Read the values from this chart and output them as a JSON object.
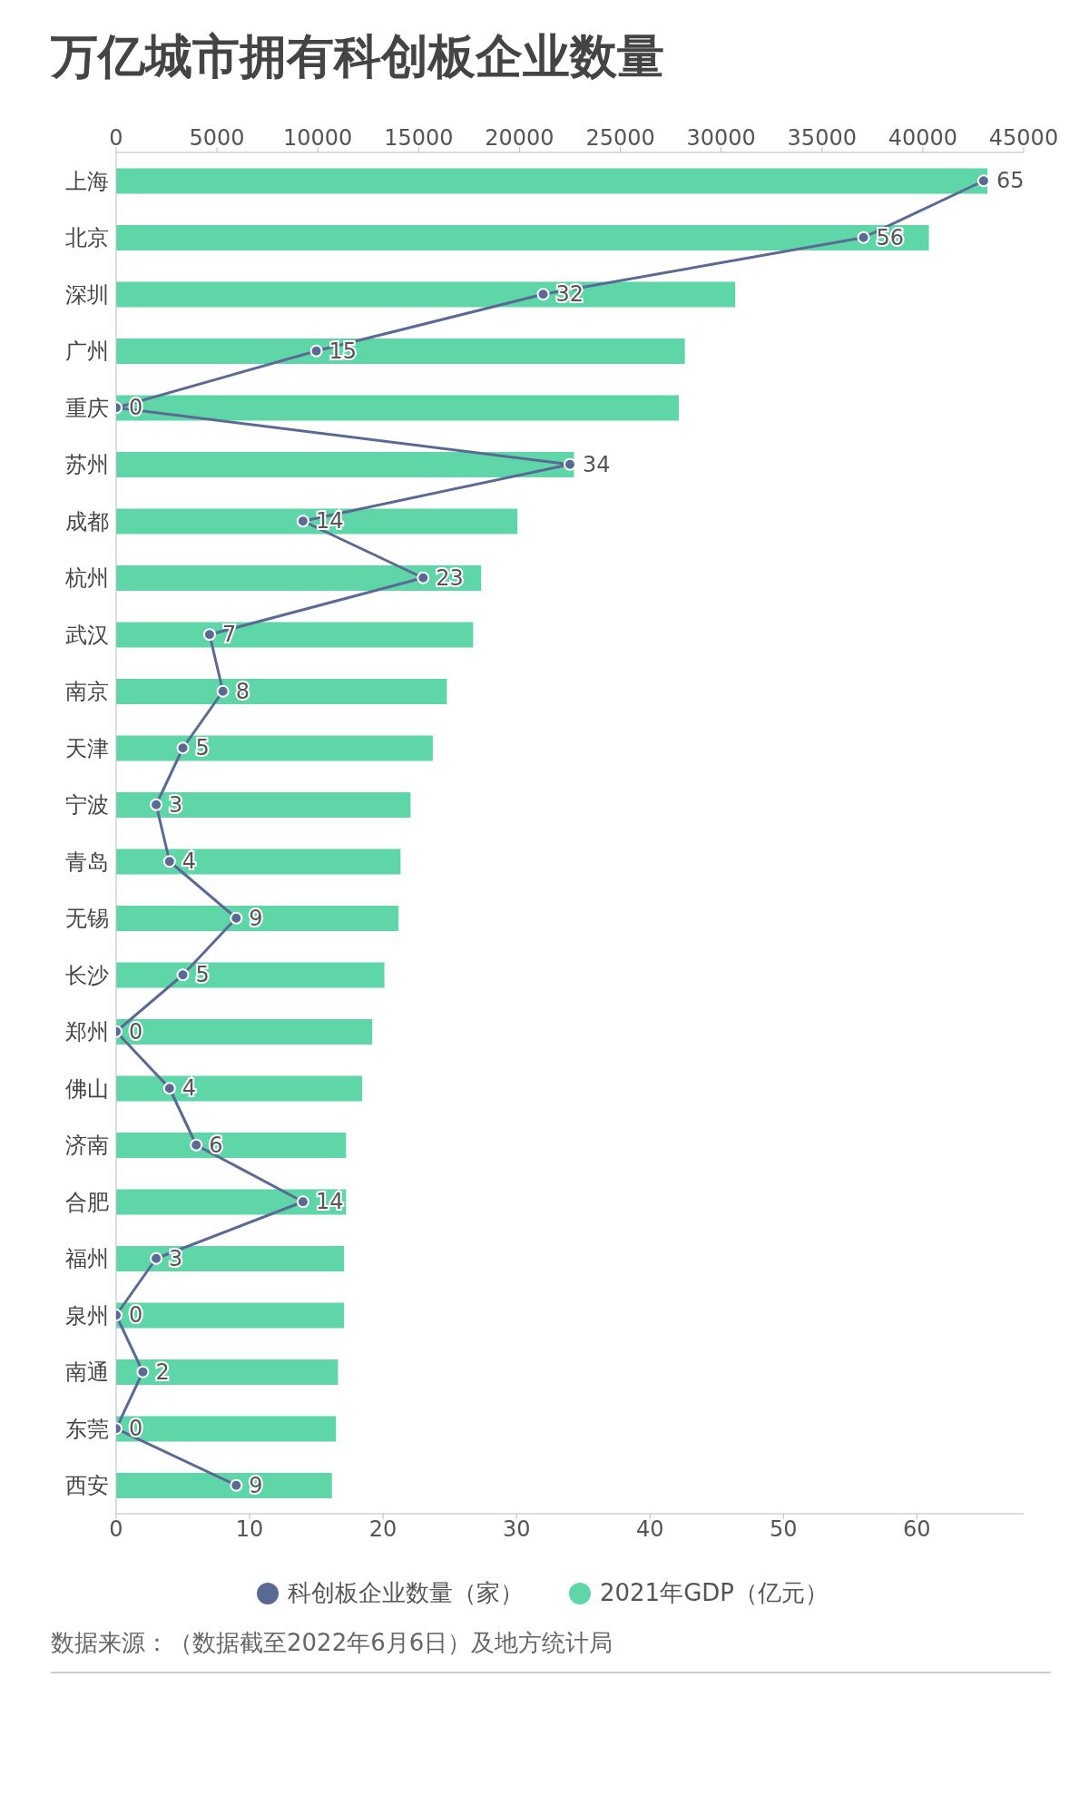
{
  "chart_data": {
    "type": "bar",
    "orientation": "horizontal",
    "title": "万亿城市拥有科创板企业数量",
    "categories": [
      "上海",
      "北京",
      "深圳",
      "广州",
      "重庆",
      "苏州",
      "成都",
      "杭州",
      "武汉",
      "南京",
      "天津",
      "宁波",
      "青岛",
      "无锡",
      "长沙",
      "郑州",
      "佛山",
      "济南",
      "合肥",
      "福州",
      "泉州",
      "南通",
      "东莞",
      "西安"
    ],
    "series": [
      {
        "name": "科创板企业数量（家）",
        "type": "line",
        "color": "#5a6a94",
        "marker": "circle",
        "values": [
          65,
          56,
          32,
          15,
          0,
          34,
          14,
          23,
          7,
          8,
          5,
          3,
          4,
          9,
          5,
          0,
          4,
          6,
          14,
          3,
          0,
          2,
          0,
          9
        ],
        "value_labels": [
          "65",
          "56",
          "32",
          "15",
          "0",
          "34",
          "14",
          "23",
          "7",
          "8",
          "5",
          "3",
          "4",
          "9",
          "5",
          "0",
          "4",
          "6",
          "14",
          "3",
          "0",
          "2",
          "0",
          "9"
        ]
      },
      {
        "name": "2021年GDP（亿元）",
        "type": "bar",
        "axis": "x2",
        "color": "#5fd6a8",
        "values": [
          43200,
          40300,
          30700,
          28200,
          27900,
          22700,
          19900,
          18100,
          17700,
          16400,
          15700,
          14600,
          14100,
          14000,
          13300,
          12700,
          12200,
          11400,
          11400,
          11300,
          11300,
          11000,
          10900,
          10700
        ]
      }
    ],
    "xlim": [
      0,
      68
    ],
    "xticks": [
      0,
      10,
      20,
      30,
      40,
      50,
      60
    ],
    "x2lim": [
      0,
      45000
    ],
    "x2ticks": [
      0,
      5000,
      10000,
      15000,
      20000,
      25000,
      30000,
      35000,
      40000,
      45000
    ],
    "legend": "bottom",
    "grid": false,
    "annotations": [
      "数据来源：（数据截至2022年6月6日）及地方统计局"
    ]
  }
}
